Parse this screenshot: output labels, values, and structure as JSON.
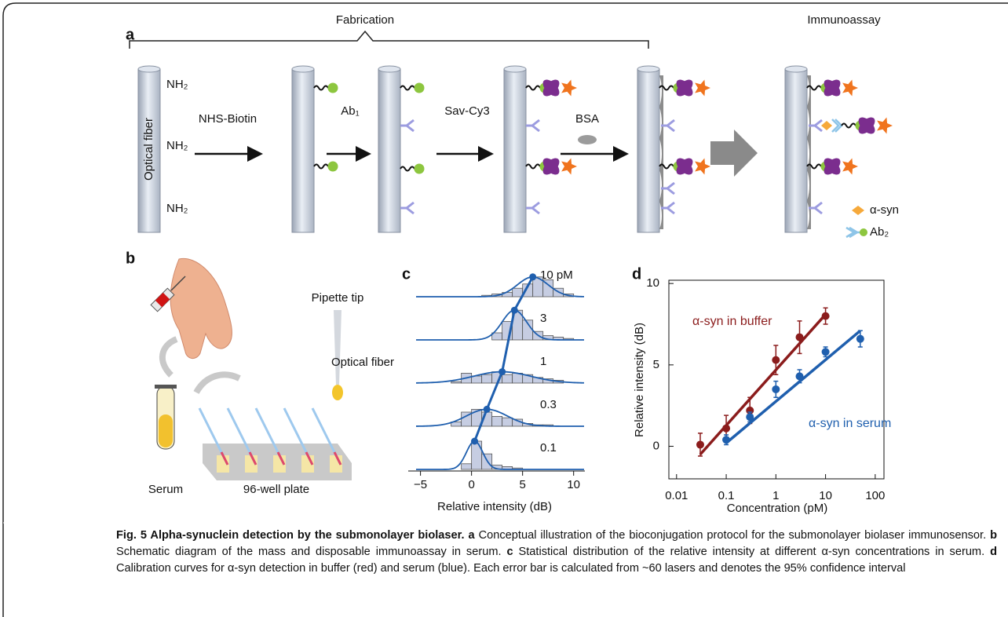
{
  "panel_a": {
    "label": "a",
    "fabrication": "Fabrication",
    "immunoassay": "Immunoassay",
    "fiber": "Optical fiber",
    "amine": [
      "NH₂",
      "NH₂",
      "NH₂"
    ],
    "steps": [
      "NHS-Biotin",
      "Ab₁",
      "Sav-Cy3",
      "BSA"
    ],
    "legend": [
      "α-syn",
      "Ab₂"
    ]
  },
  "panel_b": {
    "label": "b",
    "pipette": "Pipette tip",
    "fiber": "Optical fiber",
    "serum": "Serum",
    "plate": "96-well plate"
  },
  "chart_data": [
    {
      "type": "ridgeline",
      "panel_label": "c",
      "xlabel": "Relative intensity (dB)",
      "xlim": [
        -6.2,
        11.1
      ],
      "xticks": [
        {
          "value": -5,
          "label": "−5"
        },
        0,
        5,
        10
      ],
      "color": "#c6cde2",
      "line_color": "#1f5fae",
      "rows": [
        {
          "name": "10 pM",
          "bins": [
            1,
            2,
            3,
            4,
            5,
            6,
            7,
            8,
            9,
            10
          ],
          "counts": [
            1,
            2,
            3,
            6,
            9,
            14,
            12,
            6,
            2
          ],
          "mean": 6,
          "sd": 1.5
        },
        {
          "name": "3",
          "bins": [
            2,
            3,
            4,
            5,
            6,
            7,
            8,
            9,
            10
          ],
          "counts": [
            5,
            13,
            21,
            14,
            6,
            3,
            2,
            1
          ],
          "mean": 4.2,
          "sd": 1.2
        },
        {
          "name": "1",
          "bins": [
            -2,
            -1,
            0,
            1,
            2,
            3,
            4,
            5,
            6,
            7,
            8,
            9
          ],
          "counts": [
            1,
            7,
            5,
            6,
            8,
            6,
            7,
            6,
            4,
            3,
            2
          ],
          "mean": 3,
          "sd": 2.8
        },
        {
          "name": "0.3",
          "bins": [
            -2,
            -1,
            0,
            1,
            2,
            3,
            4,
            5,
            6,
            7,
            8
          ],
          "counts": [
            3,
            10,
            12,
            10,
            7,
            6,
            5,
            2,
            1,
            1
          ],
          "mean": 1.5,
          "sd": 2
        },
        {
          "name": "0.1",
          "bins": [
            -1,
            0,
            1,
            2,
            3,
            4,
            5
          ],
          "counts": [
            4,
            20,
            11,
            3,
            2,
            1
          ],
          "mean": 0.3,
          "sd": 0.8
        }
      ]
    },
    {
      "type": "scatter",
      "panel_label": "d",
      "xlabel": "Concentration (pM)",
      "ylabel": "Relative intensity (dB)",
      "xscale": "log",
      "xlim": [
        0.007,
        150
      ],
      "ylim": [
        -2,
        10.2
      ],
      "xticks": [
        0.01,
        0.1,
        1,
        10,
        100
      ],
      "yticks": [
        0,
        5,
        10
      ],
      "series": [
        {
          "name": "α-syn in buffer",
          "color": "#8b1c1c",
          "x": [
            0.03,
            0.1,
            0.3,
            1,
            3,
            10
          ],
          "values": [
            0.1,
            1.1,
            2.2,
            5.3,
            6.7,
            8.0
          ],
          "errors": [
            0.7,
            0.8,
            0.8,
            0.9,
            1.0,
            0.5
          ],
          "fit": {
            "x": [
              0.03,
              10
            ],
            "values": [
              -0.5,
              8.1
            ]
          }
        },
        {
          "name": "α-syn in serum",
          "color": "#1f5fae",
          "x": [
            0.1,
            0.3,
            1,
            3,
            10,
            50
          ],
          "values": [
            0.4,
            1.8,
            3.5,
            4.3,
            5.8,
            6.6
          ],
          "errors": [
            0.3,
            0.3,
            0.5,
            0.4,
            0.3,
            0.5
          ],
          "fit": {
            "x": [
              0.1,
              50
            ],
            "values": [
              0.2,
              7.1
            ]
          }
        }
      ]
    }
  ],
  "caption": [
    {
      "text": "Fig. 5 Alpha-synuclein detection by the submonolayer biolaser.",
      "bold": true
    },
    {
      "text": " a",
      "bold": true
    },
    {
      "text": " Conceptual illustration of the bioconjugation protocol for the submonolayer biolaser immunosensor.",
      "bold": false
    },
    {
      "text": " b",
      "bold": true
    },
    {
      "text": " Schematic diagram of the mass and disposable immunoassay in serum.",
      "bold": false
    },
    {
      "text": " c",
      "bold": true
    },
    {
      "text": " Statistical distribution of the relative intensity at different α-syn concentrations in serum.",
      "bold": false
    },
    {
      "text": " d",
      "bold": true
    },
    {
      "text": " Calibration curves for α-syn detection in buffer (red) and serum (blue). Each error bar is calculated from ~60 lasers and denotes the 95% confidence interval",
      "bold": false
    }
  ]
}
